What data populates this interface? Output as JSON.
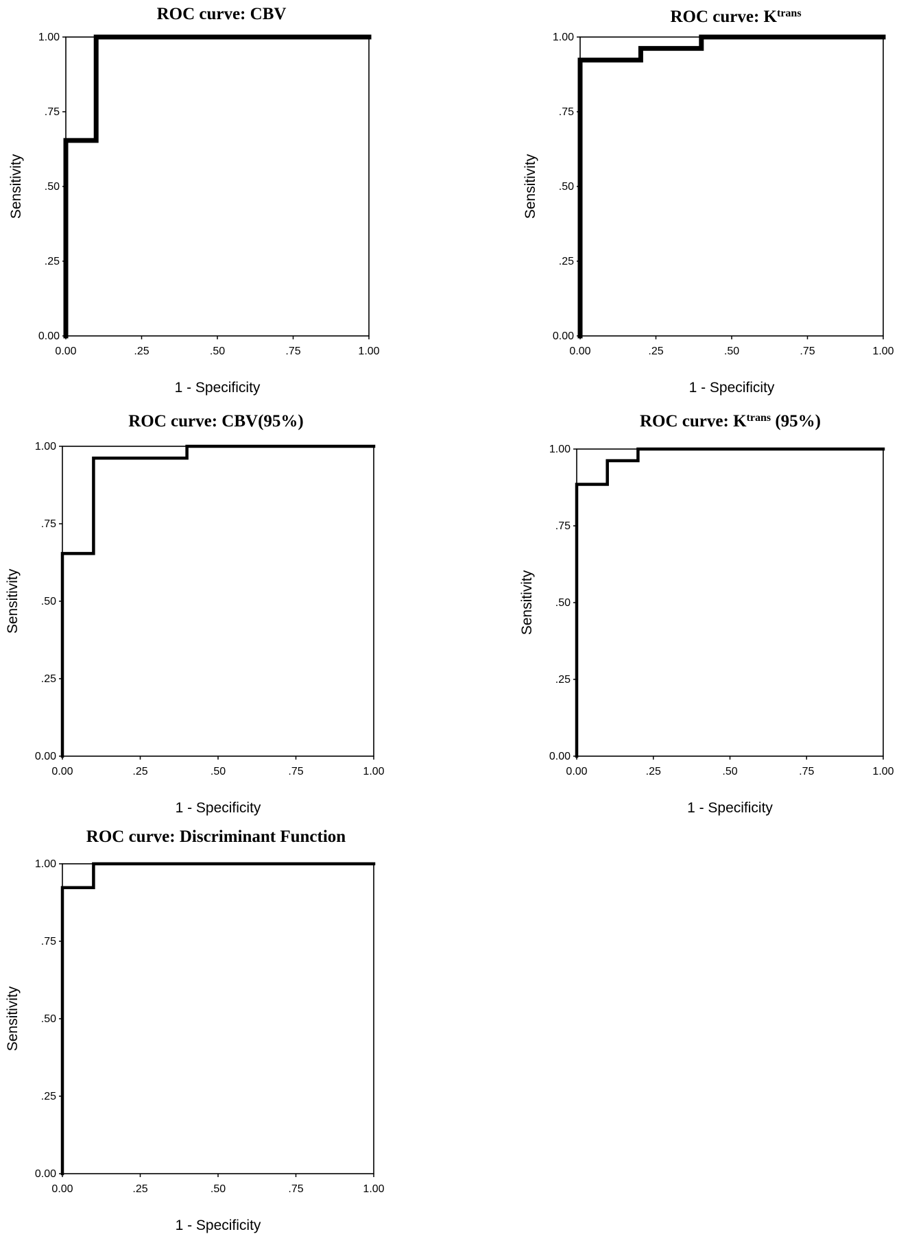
{
  "chart_data": [
    {
      "type": "line",
      "title": "ROC curve: CBV",
      "title_parts": [
        {
          "text": "ROC curve: CBV",
          "sup": false
        }
      ],
      "xlabel": "1 - Specificity",
      "ylabel": "Sensitivity",
      "xlim": [
        0,
        1
      ],
      "ylim": [
        0,
        1
      ],
      "x_ticks": [
        "0.00",
        ".25",
        ".50",
        ".75",
        "1.00"
      ],
      "y_ticks": [
        "0.00",
        ".25",
        ".50",
        ".75",
        "1.00"
      ],
      "grid": false,
      "series": [
        {
          "x": [
            0,
            0,
            0.1,
            0.1,
            1
          ],
          "y": [
            0,
            0.654,
            0.654,
            1,
            1
          ],
          "weight": "heavy"
        }
      ]
    },
    {
      "type": "line",
      "title": "ROC curve: Ktrans",
      "title_parts": [
        {
          "text": "ROC curve: K",
          "sup": false
        },
        {
          "text": "trans",
          "sup": true
        }
      ],
      "xlabel": "1 - Specificity",
      "ylabel": "Sensitivity",
      "xlim": [
        0,
        1
      ],
      "ylim": [
        0,
        1
      ],
      "x_ticks": [
        "0.00",
        ".25",
        ".50",
        ".75",
        "1.00"
      ],
      "y_ticks": [
        "0.00",
        ".25",
        ".50",
        ".75",
        "1.00"
      ],
      "grid": false,
      "series": [
        {
          "x": [
            0,
            0,
            0.2,
            0.2,
            0.4,
            0.4,
            1
          ],
          "y": [
            0,
            0.923,
            0.923,
            0.962,
            0.962,
            1,
            1
          ],
          "weight": "heavy"
        }
      ]
    },
    {
      "type": "line",
      "title": "ROC curve: CBV(95%)",
      "title_parts": [
        {
          "text": "ROC curve: CBV(95%)",
          "sup": false
        }
      ],
      "xlabel": "1 - Specificity",
      "ylabel": "Sensitivity",
      "xlim": [
        0,
        1
      ],
      "ylim": [
        0,
        1
      ],
      "x_ticks": [
        "0.00",
        ".25",
        ".50",
        ".75",
        "1.00"
      ],
      "y_ticks": [
        "0.00",
        ".25",
        ".50",
        ".75",
        "1.00"
      ],
      "grid": false,
      "series": [
        {
          "x": [
            0,
            0,
            0.1,
            0.1,
            0.4,
            0.4,
            1
          ],
          "y": [
            0,
            0.654,
            0.654,
            0.962,
            0.962,
            1,
            1
          ],
          "weight": "medium"
        }
      ]
    },
    {
      "type": "line",
      "title": "ROC curve: Ktrans (95%)",
      "title_parts": [
        {
          "text": "ROC curve: K",
          "sup": false
        },
        {
          "text": "trans",
          "sup": true
        },
        {
          "text": " (95%)",
          "sup": false
        }
      ],
      "xlabel": "1 - Specificity",
      "ylabel": "Sensitivity",
      "xlim": [
        0,
        1
      ],
      "ylim": [
        0,
        1
      ],
      "x_ticks": [
        "0.00",
        ".25",
        ".50",
        ".75",
        "1.00"
      ],
      "y_ticks": [
        "0.00",
        ".25",
        ".50",
        ".75",
        "1.00"
      ],
      "grid": false,
      "series": [
        {
          "x": [
            0,
            0,
            0.1,
            0.1,
            0.2,
            0.2,
            1
          ],
          "y": [
            0,
            0.885,
            0.885,
            0.962,
            0.962,
            1,
            1
          ],
          "weight": "medium"
        }
      ]
    },
    {
      "type": "line",
      "title": "ROC curve: Discriminant Function",
      "title_parts": [
        {
          "text": "ROC curve: Discriminant Function",
          "sup": false
        }
      ],
      "xlabel": "1 - Specificity",
      "ylabel": "Sensitivity",
      "xlim": [
        0,
        1
      ],
      "ylim": [
        0,
        1
      ],
      "x_ticks": [
        "0.00",
        ".25",
        ".50",
        ".75",
        "1.00"
      ],
      "y_ticks": [
        "0.00",
        ".25",
        ".50",
        ".75",
        "1.00"
      ],
      "grid": false,
      "series": [
        {
          "x": [
            0,
            0,
            0.1,
            0.1,
            1
          ],
          "y": [
            0,
            0.923,
            0.923,
            1,
            1
          ],
          "weight": "medium"
        }
      ]
    }
  ]
}
